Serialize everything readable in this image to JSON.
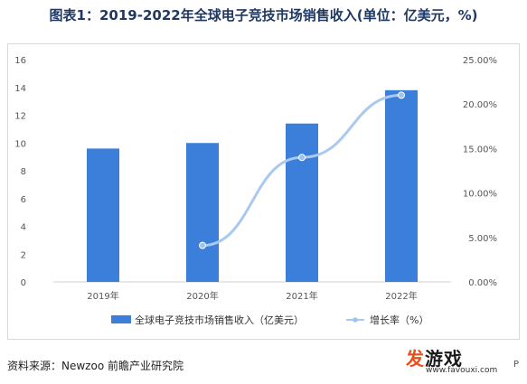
{
  "title": "图表1：2019-2022年全球电子竞技市场销售收入(单位：亿美元，%)",
  "source": "资料来源：Newzoo 前瞻产业研究院",
  "logo": {
    "main_accent": "发",
    "main_rest": "游戏",
    "url": "www.favouxi.com"
  },
  "edge_text": "P",
  "colors": {
    "bar": "#3b7fdb",
    "line": "#a9c9ee",
    "marker": "#9fc3ec",
    "title": "#1f3864"
  },
  "chart_data": {
    "type": "bar",
    "categories": [
      "2019年",
      "2020年",
      "2021年",
      "2022年"
    ],
    "series": [
      {
        "name": "全球电子竞技市场销售收入（亿美元）",
        "type": "bar",
        "axis": "left",
        "values": [
          9.6,
          10.0,
          11.4,
          13.8
        ]
      },
      {
        "name": "增长率（%）",
        "type": "line",
        "axis": "right",
        "values": [
          null,
          4.1,
          14.0,
          21.0
        ]
      }
    ],
    "left_axis": {
      "ylim": [
        0,
        16
      ],
      "ticks": [
        "0",
        "2",
        "4",
        "6",
        "8",
        "10",
        "12",
        "14",
        "16"
      ]
    },
    "right_axis": {
      "ylim": [
        0,
        25
      ],
      "ticks": [
        "0.00%",
        "5.00%",
        "10.00%",
        "15.00%",
        "20.00%",
        "25.00%"
      ]
    },
    "grid": false,
    "legend_position": "bottom"
  }
}
